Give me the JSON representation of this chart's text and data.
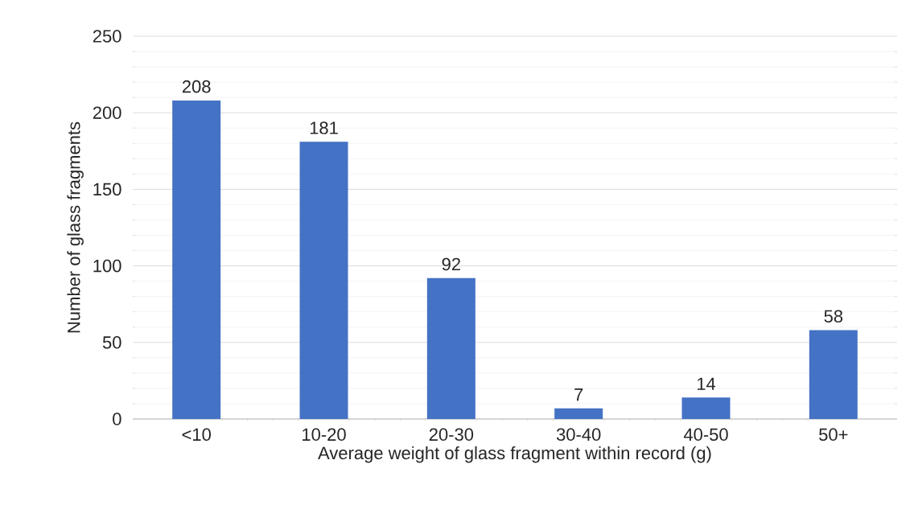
{
  "chart_data": {
    "type": "bar",
    "xlabel": "Average weight of glass fragment within record (g)",
    "ylabel": "Number of glass fragments",
    "categories": [
      "<10",
      "10-20",
      "20-30",
      "30-40",
      "40-50",
      "50+"
    ],
    "values": [
      208,
      181,
      92,
      7,
      14,
      58
    ],
    "color": "#4472c4",
    "ylim": [
      0,
      250
    ],
    "yticks": [
      0,
      50,
      100,
      150,
      200,
      250
    ],
    "grid": "y",
    "data_labels": true
  }
}
